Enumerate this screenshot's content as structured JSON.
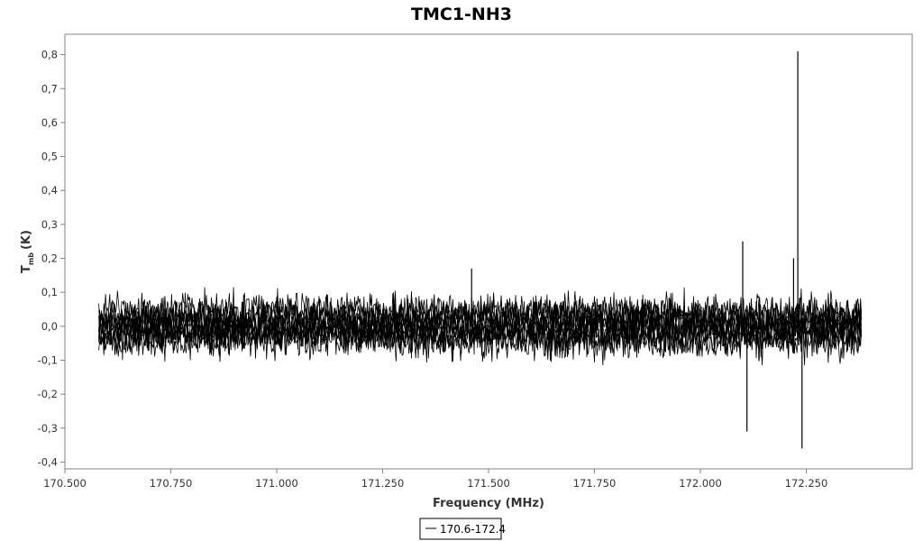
{
  "chart_data": {
    "type": "line",
    "title": "TMC1-NH3",
    "xlabel": "Frequency (MHz)",
    "ylabel_main": "T",
    "ylabel_sub": "mb",
    "ylabel_unit": "(K)",
    "xlim": [
      170.5,
      172.5
    ],
    "ylim": [
      -0.42,
      0.86
    ],
    "x_ticks": [
      170.5,
      170.75,
      171.0,
      171.25,
      171.5,
      171.75,
      172.0,
      172.25
    ],
    "x_tick_labels": [
      "170.500",
      "170.750",
      "171.000",
      "171.250",
      "171.500",
      "171.750",
      "172.000",
      "172.250"
    ],
    "y_ticks": [
      -0.4,
      -0.3,
      -0.2,
      -0.1,
      0.0,
      0.1,
      0.2,
      0.3,
      0.4,
      0.5,
      0.6,
      0.7,
      0.8
    ],
    "y_tick_labels": [
      "-0,4",
      "-0,3",
      "-0,2",
      "-0,1",
      "0,0",
      "0,1",
      "0,2",
      "0,3",
      "0,4",
      "0,5",
      "0,6",
      "0,7",
      "0,8"
    ],
    "series": [
      {
        "name": "170.6-172.4",
        "x_range": [
          170.58,
          172.38
        ],
        "baseline_spread": 0.09,
        "noise_rms": 0.025,
        "n_traces": 10,
        "features": [
          {
            "x": 172.23,
            "y_peak": 0.81
          },
          {
            "x": 172.1,
            "y_peak": 0.25
          },
          {
            "x": 172.24,
            "y_peak": -0.36
          },
          {
            "x": 172.11,
            "y_peak": -0.31
          },
          {
            "x": 171.46,
            "y_peak": 0.17
          },
          {
            "x": 172.22,
            "y_peak": 0.2
          }
        ]
      }
    ],
    "grid": false,
    "legend_position": "bottom-center"
  },
  "colors": {
    "series": "#000000",
    "axis": "#808080",
    "text": "#333333"
  }
}
